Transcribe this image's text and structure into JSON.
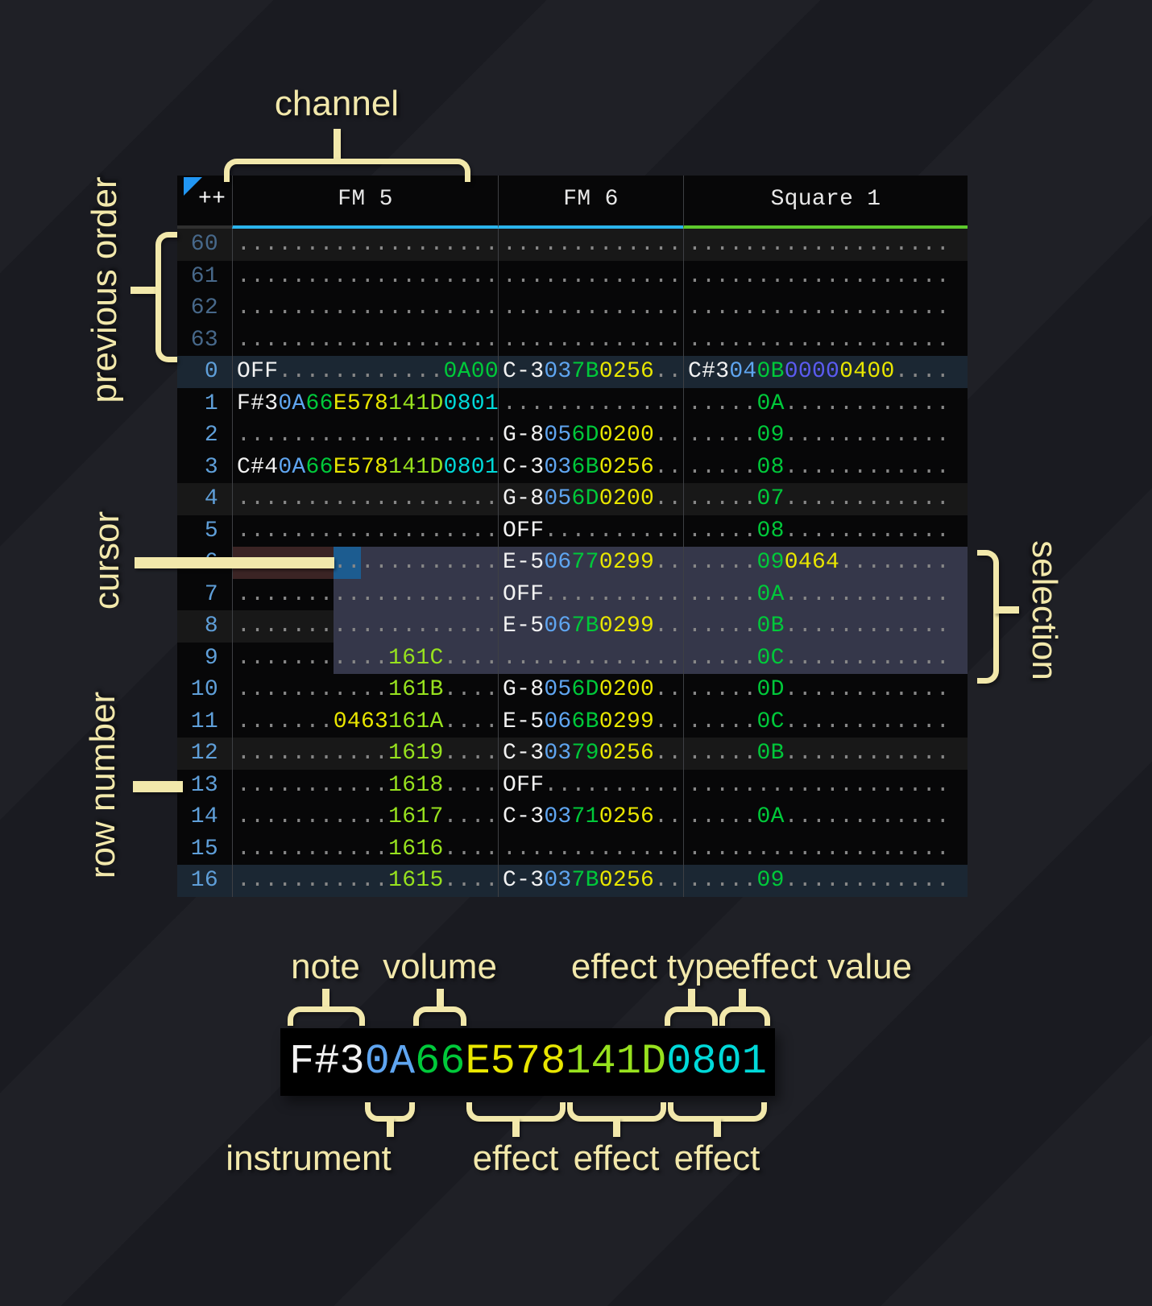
{
  "annotations": {
    "channel": "channel",
    "previous_order": "previous order",
    "cursor": "cursor",
    "row_number": "row number",
    "selection": "selection",
    "note": "note",
    "volume": "volume",
    "effect_type": "effect type",
    "effect_value": "effect value",
    "instrument": "instrument",
    "effect_1": "effect",
    "effect_2": "effect",
    "effect_3": "effect"
  },
  "colors": {
    "cream": "#f2e8ab",
    "selection_bg": "#35374a",
    "cursor_bg": "#1c5c90",
    "cursor_row_bg": "#3b2424",
    "row_hl4": "#181818",
    "row_hl16": "#1b2733",
    "rownum": "#5f9fd9",
    "rownum_dim": "#47688a",
    "note": "#f2f2f2",
    "ins": "#5fa5f0",
    "vol": "#00c93a",
    "fxy": "#e9e600",
    "fxg": "#97e11e",
    "fxc": "#00d9d9",
    "fxi": "#5b5bf1",
    "dot": "#878787",
    "grid_line": "#3e4044",
    "header_text": "#e8e8e8",
    "table_bg": "#070708",
    "triangle": "#2196f3"
  },
  "tracker": {
    "corner_label": "++",
    "channels": [
      {
        "name": "FM 5",
        "accent": "#2bb4ec"
      },
      {
        "name": "FM 6",
        "accent": "#2bb4ec"
      },
      {
        "name": "Square 1",
        "accent": "#5dc92c"
      }
    ],
    "rows": [
      {
        "num": "60",
        "dim": true,
        "hl": 1,
        "cells": [
          [
            {
              "t": "...................",
              "c": "dot"
            }
          ],
          [
            {
              "t": ".............",
              "c": "dot"
            }
          ],
          [
            {
              "t": "...................",
              "c": "dot"
            }
          ]
        ]
      },
      {
        "num": "61",
        "dim": true,
        "hl": 0,
        "cells": [
          [
            {
              "t": "...................",
              "c": "dot"
            }
          ],
          [
            {
              "t": ".............",
              "c": "dot"
            }
          ],
          [
            {
              "t": "...................",
              "c": "dot"
            }
          ]
        ]
      },
      {
        "num": "62",
        "dim": true,
        "hl": 0,
        "cells": [
          [
            {
              "t": "...................",
              "c": "dot"
            }
          ],
          [
            {
              "t": ".............",
              "c": "dot"
            }
          ],
          [
            {
              "t": "...................",
              "c": "dot"
            }
          ]
        ]
      },
      {
        "num": "63",
        "dim": true,
        "hl": 0,
        "cells": [
          [
            {
              "t": "...................",
              "c": "dot"
            }
          ],
          [
            {
              "t": ".............",
              "c": "dot"
            }
          ],
          [
            {
              "t": "...................",
              "c": "dot"
            }
          ]
        ]
      },
      {
        "num": "0",
        "dim": false,
        "hl": 2,
        "cells": [
          [
            {
              "t": "OFF",
              "c": "note"
            },
            {
              "t": "............",
              "c": "dot"
            },
            {
              "t": "0A00",
              "c": "vol"
            }
          ],
          [
            {
              "t": "C-3",
              "c": "note"
            },
            {
              "t": "03",
              "c": "ins"
            },
            {
              "t": "7B",
              "c": "vol"
            },
            {
              "t": "0256",
              "c": "fxy"
            },
            {
              "t": "..",
              "c": "dot"
            }
          ],
          [
            {
              "t": "C#3",
              "c": "note"
            },
            {
              "t": "04",
              "c": "ins"
            },
            {
              "t": "0B",
              "c": "vol"
            },
            {
              "t": "0000",
              "c": "fxi"
            },
            {
              "t": "0400",
              "c": "fxy"
            },
            {
              "t": "....",
              "c": "dot"
            }
          ]
        ]
      },
      {
        "num": "1",
        "dim": false,
        "hl": 0,
        "cells": [
          [
            {
              "t": "F#3",
              "c": "note"
            },
            {
              "t": "0A",
              "c": "ins"
            },
            {
              "t": "66",
              "c": "vol"
            },
            {
              "t": "E578",
              "c": "fxy"
            },
            {
              "t": "141D",
              "c": "fxg"
            },
            {
              "t": "0801",
              "c": "fxc"
            }
          ],
          [
            {
              "t": ".............",
              "c": "dot"
            }
          ],
          [
            {
              "t": ".....",
              "c": "dot"
            },
            {
              "t": "0A",
              "c": "vol"
            },
            {
              "t": "............",
              "c": "dot"
            }
          ]
        ]
      },
      {
        "num": "2",
        "dim": false,
        "hl": 0,
        "cells": [
          [
            {
              "t": "...................",
              "c": "dot"
            }
          ],
          [
            {
              "t": "G-8",
              "c": "note"
            },
            {
              "t": "05",
              "c": "ins"
            },
            {
              "t": "6D",
              "c": "vol"
            },
            {
              "t": "0200",
              "c": "fxy"
            },
            {
              "t": "..",
              "c": "dot"
            }
          ],
          [
            {
              "t": ".....",
              "c": "dot"
            },
            {
              "t": "09",
              "c": "vol"
            },
            {
              "t": "............",
              "c": "dot"
            }
          ]
        ]
      },
      {
        "num": "3",
        "dim": false,
        "hl": 0,
        "cells": [
          [
            {
              "t": "C#4",
              "c": "note"
            },
            {
              "t": "0A",
              "c": "ins"
            },
            {
              "t": "66",
              "c": "vol"
            },
            {
              "t": "E578",
              "c": "fxy"
            },
            {
              "t": "141D",
              "c": "fxg"
            },
            {
              "t": "0801",
              "c": "fxc"
            }
          ],
          [
            {
              "t": "C-3",
              "c": "note"
            },
            {
              "t": "03",
              "c": "ins"
            },
            {
              "t": "6B",
              "c": "vol"
            },
            {
              "t": "0256",
              "c": "fxy"
            },
            {
              "t": "..",
              "c": "dot"
            }
          ],
          [
            {
              "t": ".....",
              "c": "dot"
            },
            {
              "t": "08",
              "c": "vol"
            },
            {
              "t": "............",
              "c": "dot"
            }
          ]
        ]
      },
      {
        "num": "4",
        "dim": false,
        "hl": 1,
        "cells": [
          [
            {
              "t": "...................",
              "c": "dot"
            }
          ],
          [
            {
              "t": "G-8",
              "c": "note"
            },
            {
              "t": "05",
              "c": "ins"
            },
            {
              "t": "6D",
              "c": "vol"
            },
            {
              "t": "0200",
              "c": "fxy"
            },
            {
              "t": "..",
              "c": "dot"
            }
          ],
          [
            {
              "t": ".....",
              "c": "dot"
            },
            {
              "t": "07",
              "c": "vol"
            },
            {
              "t": "............",
              "c": "dot"
            }
          ]
        ]
      },
      {
        "num": "5",
        "dim": false,
        "hl": 0,
        "cells": [
          [
            {
              "t": "...................",
              "c": "dot"
            }
          ],
          [
            {
              "t": "OFF",
              "c": "note"
            },
            {
              "t": "..........",
              "c": "dot"
            }
          ],
          [
            {
              "t": ".....",
              "c": "dot"
            },
            {
              "t": "08",
              "c": "vol"
            },
            {
              "t": "............",
              "c": "dot"
            }
          ]
        ]
      },
      {
        "num": "6",
        "dim": false,
        "hl": 0,
        "cells": [
          [
            {
              "t": "...................",
              "c": "dot"
            }
          ],
          [
            {
              "t": "E-5",
              "c": "note"
            },
            {
              "t": "06",
              "c": "ins"
            },
            {
              "t": "77",
              "c": "vol"
            },
            {
              "t": "0299",
              "c": "fxy"
            },
            {
              "t": "..",
              "c": "dot"
            }
          ],
          [
            {
              "t": ".....",
              "c": "dot"
            },
            {
              "t": "09",
              "c": "vol"
            },
            {
              "t": "0464",
              "c": "fxy"
            },
            {
              "t": "........",
              "c": "dot"
            }
          ]
        ]
      },
      {
        "num": "7",
        "dim": false,
        "hl": 0,
        "cells": [
          [
            {
              "t": "...................",
              "c": "dot"
            }
          ],
          [
            {
              "t": "OFF",
              "c": "note"
            },
            {
              "t": "..........",
              "c": "dot"
            }
          ],
          [
            {
              "t": ".....",
              "c": "dot"
            },
            {
              "t": "0A",
              "c": "vol"
            },
            {
              "t": "............",
              "c": "dot"
            }
          ]
        ]
      },
      {
        "num": "8",
        "dim": false,
        "hl": 1,
        "cells": [
          [
            {
              "t": "...................",
              "c": "dot"
            }
          ],
          [
            {
              "t": "E-5",
              "c": "note"
            },
            {
              "t": "06",
              "c": "ins"
            },
            {
              "t": "7B",
              "c": "vol"
            },
            {
              "t": "0299",
              "c": "fxy"
            },
            {
              "t": "..",
              "c": "dot"
            }
          ],
          [
            {
              "t": ".....",
              "c": "dot"
            },
            {
              "t": "0B",
              "c": "vol"
            },
            {
              "t": "............",
              "c": "dot"
            }
          ]
        ]
      },
      {
        "num": "9",
        "dim": false,
        "hl": 0,
        "cells": [
          [
            {
              "t": "...........",
              "c": "dot"
            },
            {
              "t": "161C",
              "c": "fxg"
            },
            {
              "t": "....",
              "c": "dot"
            }
          ],
          [
            {
              "t": ".............",
              "c": "dot"
            }
          ],
          [
            {
              "t": ".....",
              "c": "dot"
            },
            {
              "t": "0C",
              "c": "vol"
            },
            {
              "t": "............",
              "c": "dot"
            }
          ]
        ]
      },
      {
        "num": "10",
        "dim": false,
        "hl": 0,
        "cells": [
          [
            {
              "t": "...........",
              "c": "dot"
            },
            {
              "t": "161B",
              "c": "fxg"
            },
            {
              "t": "....",
              "c": "dot"
            }
          ],
          [
            {
              "t": "G-8",
              "c": "note"
            },
            {
              "t": "05",
              "c": "ins"
            },
            {
              "t": "6D",
              "c": "vol"
            },
            {
              "t": "0200",
              "c": "fxy"
            },
            {
              "t": "..",
              "c": "dot"
            }
          ],
          [
            {
              "t": ".....",
              "c": "dot"
            },
            {
              "t": "0D",
              "c": "vol"
            },
            {
              "t": "............",
              "c": "dot"
            }
          ]
        ]
      },
      {
        "num": "11",
        "dim": false,
        "hl": 0,
        "cells": [
          [
            {
              "t": ".......",
              "c": "dot"
            },
            {
              "t": "0463",
              "c": "fxy"
            },
            {
              "t": "161A",
              "c": "fxg"
            },
            {
              "t": "....",
              "c": "dot"
            }
          ],
          [
            {
              "t": "E-5",
              "c": "note"
            },
            {
              "t": "06",
              "c": "ins"
            },
            {
              "t": "6B",
              "c": "vol"
            },
            {
              "t": "0299",
              "c": "fxy"
            },
            {
              "t": "..",
              "c": "dot"
            }
          ],
          [
            {
              "t": ".....",
              "c": "dot"
            },
            {
              "t": "0C",
              "c": "vol"
            },
            {
              "t": "............",
              "c": "dot"
            }
          ]
        ]
      },
      {
        "num": "12",
        "dim": false,
        "hl": 1,
        "cells": [
          [
            {
              "t": "...........",
              "c": "dot"
            },
            {
              "t": "1619",
              "c": "fxg"
            },
            {
              "t": "....",
              "c": "dot"
            }
          ],
          [
            {
              "t": "C-3",
              "c": "note"
            },
            {
              "t": "03",
              "c": "ins"
            },
            {
              "t": "79",
              "c": "vol"
            },
            {
              "t": "0256",
              "c": "fxy"
            },
            {
              "t": "..",
              "c": "dot"
            }
          ],
          [
            {
              "t": ".....",
              "c": "dot"
            },
            {
              "t": "0B",
              "c": "vol"
            },
            {
              "t": "............",
              "c": "dot"
            }
          ]
        ]
      },
      {
        "num": "13",
        "dim": false,
        "hl": 0,
        "cells": [
          [
            {
              "t": "...........",
              "c": "dot"
            },
            {
              "t": "1618",
              "c": "fxg"
            },
            {
              "t": "....",
              "c": "dot"
            }
          ],
          [
            {
              "t": "OFF",
              "c": "note"
            },
            {
              "t": "..........",
              "c": "dot"
            }
          ],
          [
            {
              "t": "...................",
              "c": "dot"
            }
          ]
        ]
      },
      {
        "num": "14",
        "dim": false,
        "hl": 0,
        "cells": [
          [
            {
              "t": "...........",
              "c": "dot"
            },
            {
              "t": "1617",
              "c": "fxg"
            },
            {
              "t": "....",
              "c": "dot"
            }
          ],
          [
            {
              "t": "C-3",
              "c": "note"
            },
            {
              "t": "03",
              "c": "ins"
            },
            {
              "t": "71",
              "c": "vol"
            },
            {
              "t": "0256",
              "c": "fxy"
            },
            {
              "t": "..",
              "c": "dot"
            }
          ],
          [
            {
              "t": ".....",
              "c": "dot"
            },
            {
              "t": "0A",
              "c": "vol"
            },
            {
              "t": "............",
              "c": "dot"
            }
          ]
        ]
      },
      {
        "num": "15",
        "dim": false,
        "hl": 0,
        "cells": [
          [
            {
              "t": "...........",
              "c": "dot"
            },
            {
              "t": "1616",
              "c": "fxg"
            },
            {
              "t": "....",
              "c": "dot"
            }
          ],
          [
            {
              "t": ".............",
              "c": "dot"
            }
          ],
          [
            {
              "t": "...................",
              "c": "dot"
            }
          ]
        ]
      },
      {
        "num": "16",
        "dim": false,
        "hl": 2,
        "cells": [
          [
            {
              "t": "...........",
              "c": "dot"
            },
            {
              "t": "1615",
              "c": "fxg"
            },
            {
              "t": "....",
              "c": "dot"
            }
          ],
          [
            {
              "t": "C-3",
              "c": "note"
            },
            {
              "t": "03",
              "c": "ins"
            },
            {
              "t": "7B",
              "c": "vol"
            },
            {
              "t": "0256",
              "c": "fxy"
            },
            {
              "t": "..",
              "c": "dot"
            }
          ],
          [
            {
              "t": ".....",
              "c": "dot"
            },
            {
              "t": "09",
              "c": "vol"
            },
            {
              "t": "............",
              "c": "dot"
            }
          ]
        ]
      }
    ]
  },
  "example_cell": {
    "segments": [
      {
        "t": "F#3",
        "c": "note"
      },
      {
        "t": "0A",
        "c": "ins"
      },
      {
        "t": "66",
        "c": "vol"
      },
      {
        "t": "E578",
        "c": "fxy"
      },
      {
        "t": "141D",
        "c": "fxg"
      },
      {
        "t": "0801",
        "c": "fxc"
      }
    ]
  }
}
